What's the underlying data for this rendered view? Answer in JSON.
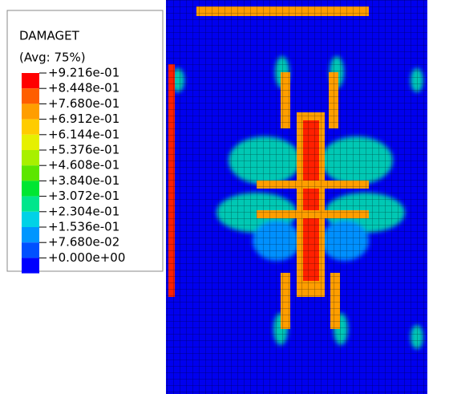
{
  "legend": {
    "title": "DAMAGET",
    "subtitle": "(Avg: 75%)",
    "labels": [
      "+9.216e-01",
      "+8.448e-01",
      "+7.680e-01",
      "+6.912e-01",
      "+6.144e-01",
      "+5.376e-01",
      "+4.608e-01",
      "+3.840e-01",
      "+3.072e-01",
      "+2.304e-01",
      "+1.536e-01",
      "+7.680e-02",
      "+0.000e+00"
    ],
    "colors": [
      "#ff0000",
      "#ff5e00",
      "#ff9e00",
      "#ffcc00",
      "#e6f000",
      "#a8f000",
      "#5ce600",
      "#00e632",
      "#00e68c",
      "#00d2e6",
      "#0096ff",
      "#0050ff",
      "#0000ff"
    ]
  }
}
